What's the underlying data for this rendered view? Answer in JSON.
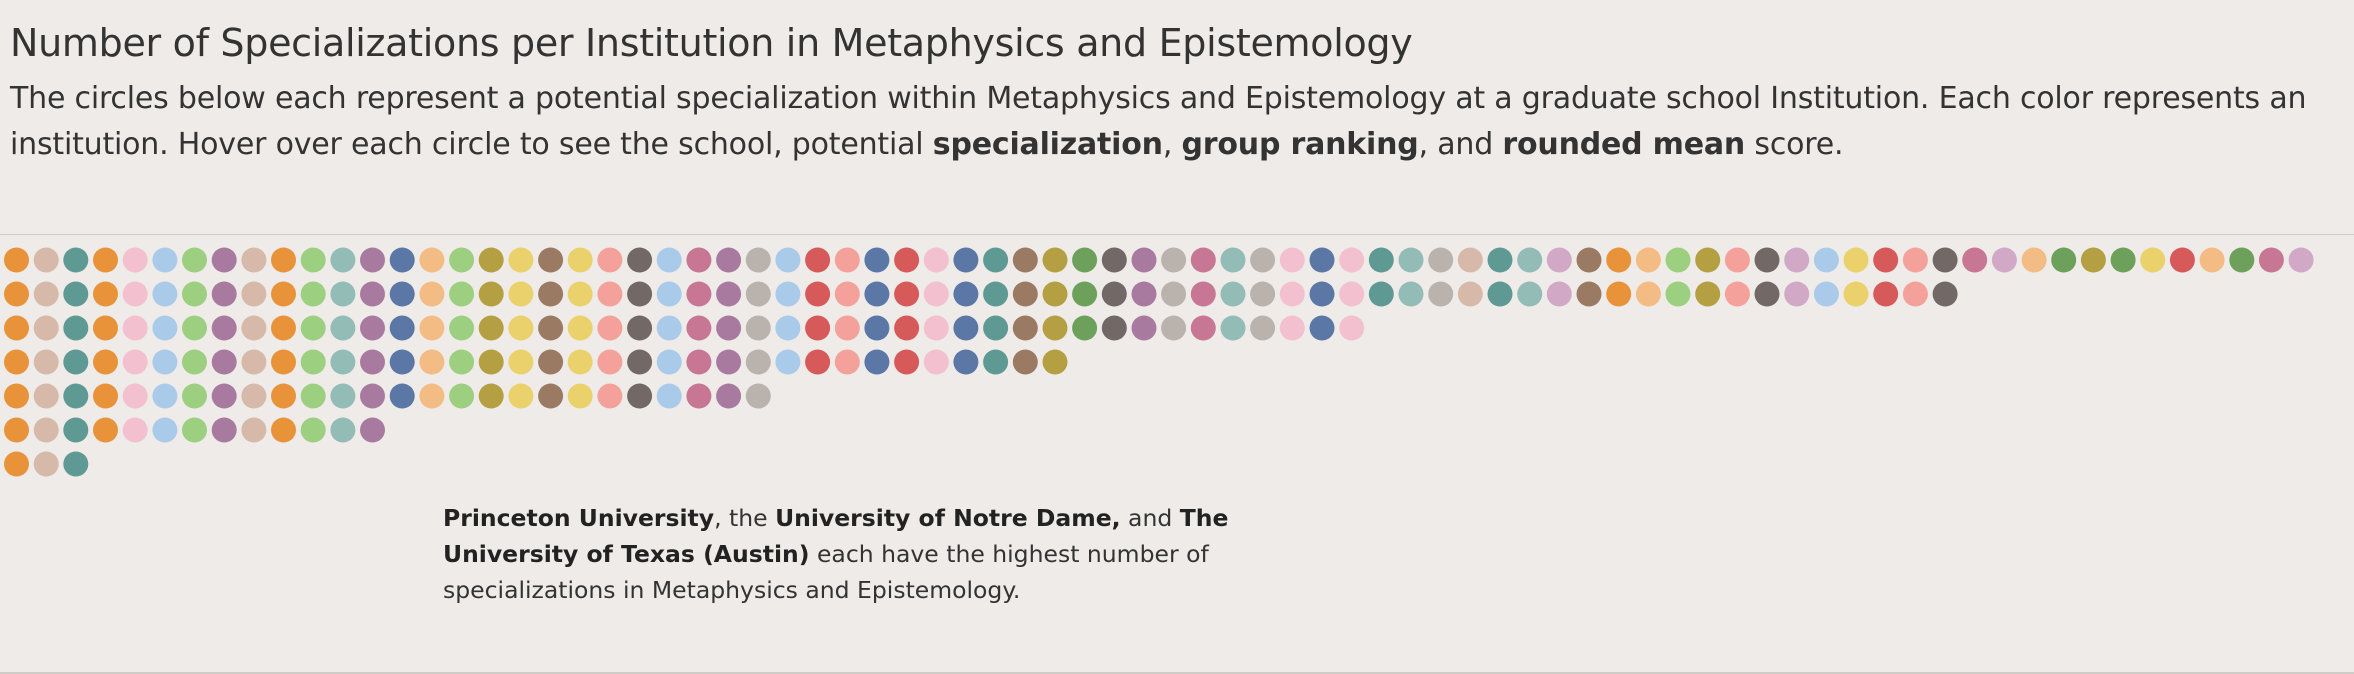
{
  "header": {
    "title": "Number of Specializations per Institution in Metaphysics and Epistemology",
    "subtitle_part1": "The circles below each represent a potential specialization within Metaphysics and Epistemology at a graduate school Institution. Each color represents an institution. Hover over each circle to see the school, potential ",
    "subtitle_bold1": "specialization",
    "subtitle_part2": ", ",
    "subtitle_bold2": "group ranking",
    "subtitle_part3": ", and ",
    "subtitle_bold3": "rounded mean",
    "subtitle_part4": " score."
  },
  "annotation": {
    "bold1": "Princeton University",
    "text1": ", the ",
    "bold2": "University of Notre Dame,",
    "text2": " and ",
    "bold3": "The University of Texas (Austin)",
    "text3": " each have the highest number of specializations in Metaphysics and Epistemology."
  },
  "chart_data": {
    "type": "dot-column",
    "palette": [
      "#e8923a",
      "#d6b9a8",
      "#5f9993",
      "#f3c0d0",
      "#a9cae9",
      "#9ccf80",
      "#a97aa0",
      "#f3bc84",
      "#93bcb6",
      "#5b77a6",
      "#b49f43",
      "#ead16c",
      "#9a7a63",
      "#f3a19a",
      "#726866",
      "#c77693",
      "#b9b2ad",
      "#d65a5a",
      "#6da05b",
      "#d1a8c6"
    ],
    "columns": [
      {
        "color": "#e8923a",
        "count": 7
      },
      {
        "color": "#d6b9a8",
        "count": 7
      },
      {
        "color": "#5f9993",
        "count": 7
      },
      {
        "color": "#e8923a",
        "count": 6
      },
      {
        "color": "#f3c0d0",
        "count": 6
      },
      {
        "color": "#a9cae9",
        "count": 6
      },
      {
        "color": "#9ccf80",
        "count": 6
      },
      {
        "color": "#a97aa0",
        "count": 6
      },
      {
        "color": "#d6b9a8",
        "count": 6
      },
      {
        "color": "#e8923a",
        "count": 6
      },
      {
        "color": "#9ccf80",
        "count": 6
      },
      {
        "color": "#93bcb6",
        "count": 6
      },
      {
        "color": "#a97aa0",
        "count": 6
      },
      {
        "color": "#5b77a6",
        "count": 5
      },
      {
        "color": "#f3bc84",
        "count": 5
      },
      {
        "color": "#9ccf80",
        "count": 5
      },
      {
        "color": "#b49f43",
        "count": 5
      },
      {
        "color": "#ead16c",
        "count": 5
      },
      {
        "color": "#9a7a63",
        "count": 5
      },
      {
        "color": "#ead16c",
        "count": 5
      },
      {
        "color": "#f3a19a",
        "count": 5
      },
      {
        "color": "#726866",
        "count": 5
      },
      {
        "color": "#a9cae9",
        "count": 5
      },
      {
        "color": "#c77693",
        "count": 5
      },
      {
        "color": "#a97aa0",
        "count": 5
      },
      {
        "color": "#b9b2ad",
        "count": 5
      },
      {
        "color": "#a9cae9",
        "count": 4
      },
      {
        "color": "#d65a5a",
        "count": 4
      },
      {
        "color": "#f3a19a",
        "count": 4
      },
      {
        "color": "#5b77a6",
        "count": 4
      },
      {
        "color": "#d65a5a",
        "count": 4
      },
      {
        "color": "#f3c0d0",
        "count": 4
      },
      {
        "color": "#5b77a6",
        "count": 4
      },
      {
        "color": "#5f9993",
        "count": 4
      },
      {
        "color": "#9a7a63",
        "count": 4
      },
      {
        "color": "#b49f43",
        "count": 4
      },
      {
        "color": "#6da05b",
        "count": 3
      },
      {
        "color": "#726866",
        "count": 3
      },
      {
        "color": "#a97aa0",
        "count": 3
      },
      {
        "color": "#b9b2ad",
        "count": 3
      },
      {
        "color": "#c77693",
        "count": 3
      },
      {
        "color": "#93bcb6",
        "count": 3
      },
      {
        "color": "#b9b2ad",
        "count": 3
      },
      {
        "color": "#f3c0d0",
        "count": 3
      },
      {
        "color": "#5b77a6",
        "count": 3
      },
      {
        "color": "#f3c0d0",
        "count": 3
      },
      {
        "color": "#5f9993",
        "count": 2
      },
      {
        "color": "#93bcb6",
        "count": 2
      },
      {
        "color": "#b9b2ad",
        "count": 2
      },
      {
        "color": "#d6b9a8",
        "count": 2
      },
      {
        "color": "#5f9993",
        "count": 2
      },
      {
        "color": "#93bcb6",
        "count": 2
      },
      {
        "color": "#d1a8c6",
        "count": 2
      },
      {
        "color": "#9a7a63",
        "count": 2
      },
      {
        "color": "#e8923a",
        "count": 2
      },
      {
        "color": "#f3bc84",
        "count": 2
      },
      {
        "color": "#9ccf80",
        "count": 2
      },
      {
        "color": "#b49f43",
        "count": 2
      },
      {
        "color": "#f3a19a",
        "count": 2
      },
      {
        "color": "#726866",
        "count": 2
      },
      {
        "color": "#d1a8c6",
        "count": 2
      },
      {
        "color": "#a9cae9",
        "count": 2
      },
      {
        "color": "#ead16c",
        "count": 2
      },
      {
        "color": "#d65a5a",
        "count": 2
      },
      {
        "color": "#f3a19a",
        "count": 2
      },
      {
        "color": "#726866",
        "count": 2
      },
      {
        "color": "#c77693",
        "count": 1
      },
      {
        "color": "#d1a8c6",
        "count": 1
      },
      {
        "color": "#f3bc84",
        "count": 1
      },
      {
        "color": "#6da05b",
        "count": 1
      },
      {
        "color": "#b49f43",
        "count": 1
      },
      {
        "color": "#6da05b",
        "count": 1
      },
      {
        "color": "#ead16c",
        "count": 1
      },
      {
        "color": "#d65a5a",
        "count": 1
      },
      {
        "color": "#f3bc84",
        "count": 1
      },
      {
        "color": "#6da05b",
        "count": 1
      },
      {
        "color": "#c77693",
        "count": 1
      },
      {
        "color": "#d1a8c6",
        "count": 1
      }
    ]
  }
}
